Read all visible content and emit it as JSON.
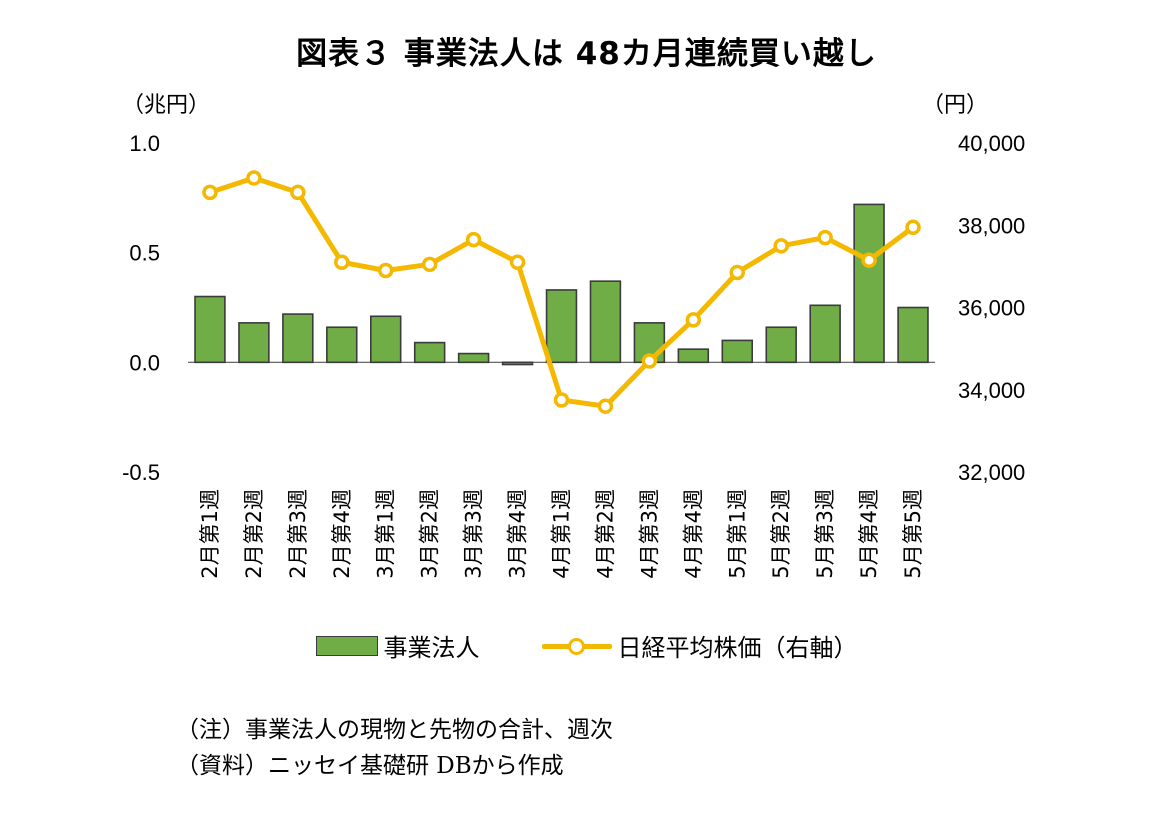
{
  "chart_data": {
    "type": "bar",
    "title": "図表３ 事業法人は 48カ月連続買い越し",
    "left_axis": {
      "unit_label": "（兆円）",
      "min": -0.5,
      "max": 1.0,
      "ticks": [
        1.0,
        0.5,
        0.0,
        -0.5
      ],
      "tick_labels": [
        "1.0",
        "0.5",
        "0.0",
        "-0.5"
      ]
    },
    "right_axis": {
      "unit_label": "（円）",
      "min": 32000,
      "max": 40000,
      "ticks": [
        40000,
        38000,
        36000,
        34000,
        32000
      ],
      "tick_labels": [
        "40,000",
        "38,000",
        "36,000",
        "34,000",
        "32,000"
      ]
    },
    "categories": [
      "2月第1週",
      "2月第2週",
      "2月第3週",
      "2月第4週",
      "3月第1週",
      "3月第2週",
      "3月第3週",
      "3月第4週",
      "4月第1週",
      "4月第2週",
      "4月第3週",
      "4月第4週",
      "5月第1週",
      "5月第2週",
      "5月第3週",
      "5月第4週",
      "5月第5週"
    ],
    "series": [
      {
        "name": "事業法人",
        "type": "bar",
        "axis": "left",
        "color": "#70AD47",
        "values": [
          0.3,
          0.18,
          0.22,
          0.16,
          0.21,
          0.09,
          0.04,
          -0.01,
          0.33,
          0.37,
          0.18,
          0.06,
          0.1,
          0.16,
          0.26,
          0.72,
          0.25
        ]
      },
      {
        "name": "日経平均株価（右軸）",
        "type": "line",
        "axis": "right",
        "color": "#F5B800",
        "values": [
          38800,
          39150,
          38800,
          37100,
          36900,
          37050,
          37650,
          37100,
          33750,
          33600,
          34700,
          35700,
          36850,
          37500,
          37700,
          37150,
          37950
        ]
      }
    ],
    "grid": false,
    "legend_position": "bottom"
  },
  "notes": [
    "（注）事業法人の現物と先物の合計、週次",
    "（資料）ニッセイ基礎研 DBから作成"
  ]
}
